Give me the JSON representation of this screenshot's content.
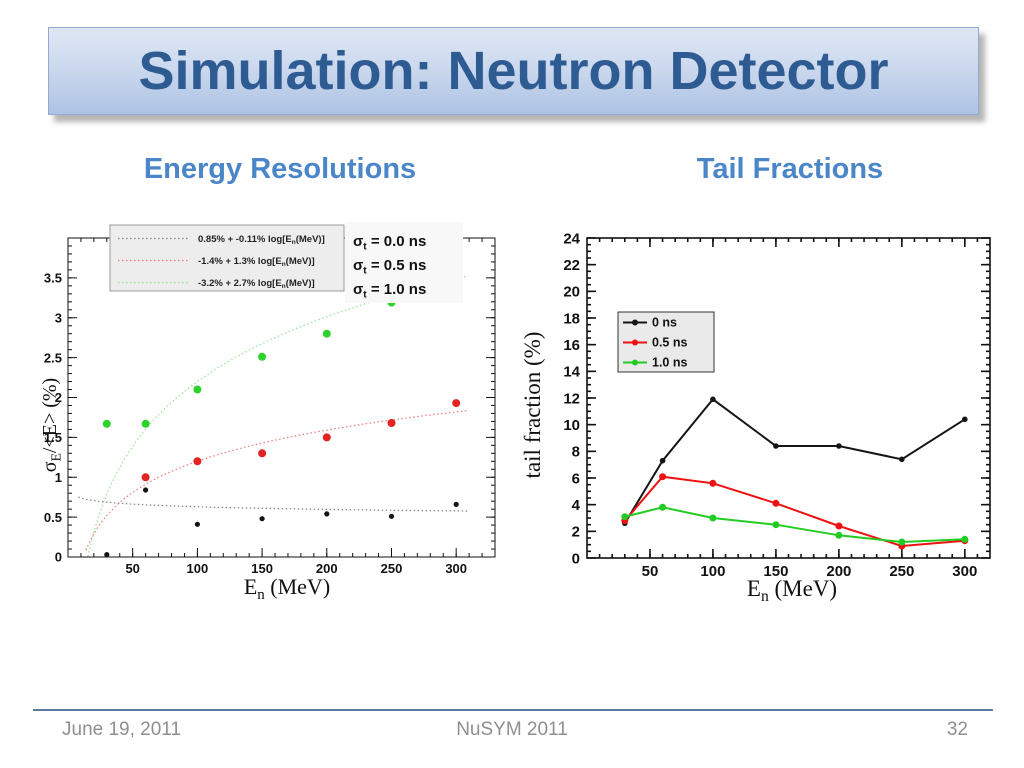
{
  "slide": {
    "title": "Simulation: Neutron Detector",
    "headings": {
      "left": "Energy Resolutions",
      "right": "Tail Fractions"
    },
    "footer": {
      "date": "June 19, 2011",
      "conference": "NuSYM 2011",
      "page_number": "32"
    }
  },
  "colors": {
    "title_text": "#2d5b92",
    "title_bar_top": "#dfe7f4",
    "title_bar_bottom": "#aec3e4",
    "heading": "#4a86c8",
    "footer_line": "#5d7c9d",
    "footer_text": "#8f8f8f"
  },
  "chart_data": [
    {
      "type": "scatter",
      "title": "Energy Resolutions",
      "xlabel": "E_n (MeV)",
      "ylabel": "sigma_E/<E> (%)",
      "xlabel_rich": [
        [
          "E",
          0
        ],
        [
          "n",
          1
        ],
        [
          " (MeV)",
          0
        ]
      ],
      "ylabel_rich": [
        [
          "σ",
          0
        ],
        [
          "E",
          1
        ],
        [
          "/<E> (%)",
          0
        ]
      ],
      "xlim": [
        0,
        330
      ],
      "ylim": [
        0,
        4.0
      ],
      "x_major_ticks": [
        50,
        100,
        150,
        200,
        250,
        300
      ],
      "y_major_ticks": [
        0,
        0.5,
        1,
        1.5,
        2,
        2.5,
        3,
        3.5
      ],
      "x_minor_step": 10,
      "y_minor_step": 0.1,
      "grid": false,
      "legend_position": "top-left",
      "series": [
        {
          "name": "0.0 ns",
          "sigma_label": [
            [
              "σ",
              0
            ],
            [
              "t",
              1
            ],
            [
              " = 0.0 ns",
              0
            ]
          ],
          "fit_label": [
            [
              "0.85% + -0.11% log[E",
              0
            ],
            [
              "n",
              1
            ],
            [
              "(MeV)]",
              0
            ]
          ],
          "fit": {
            "intercept_pct": 0.85,
            "slope_pct": -0.11,
            "draw_range": [
              8,
              310
            ]
          },
          "color": "#151515",
          "curve_color": "#808080",
          "marker_r": 2.6,
          "values": [
            [
              30,
              0.03
            ],
            [
              60,
              0.84
            ],
            [
              100,
              0.41
            ],
            [
              150,
              0.48
            ],
            [
              200,
              0.54
            ],
            [
              250,
              0.51
            ],
            [
              300,
              0.66
            ]
          ]
        },
        {
          "name": "0.5 ns",
          "sigma_label": [
            [
              "σ",
              0
            ],
            [
              "t",
              1
            ],
            [
              " = 0.5 ns",
              0
            ]
          ],
          "fit_label": [
            [
              "-1.4% + 1.3% log[E",
              0
            ],
            [
              "n",
              1
            ],
            [
              "(MeV)]",
              0
            ]
          ],
          "fit": {
            "intercept_pct": -1.4,
            "slope_pct": 1.3,
            "draw_range": [
              11.9,
              310
            ]
          },
          "color": "#e32222",
          "curve_color": "#ef7777",
          "marker_r": 4,
          "values": [
            [
              60,
              1.0
            ],
            [
              100,
              1.2
            ],
            [
              150,
              1.3
            ],
            [
              200,
              1.5
            ],
            [
              250,
              1.68
            ],
            [
              300,
              1.93
            ]
          ]
        },
        {
          "name": "1.0 ns",
          "sigma_label": [
            [
              "σ",
              0
            ],
            [
              "t",
              1
            ],
            [
              " = 1.0 ns",
              0
            ]
          ],
          "fit_label": [
            [
              "-3.2% + 2.7% log[E",
              0
            ],
            [
              "n",
              1
            ],
            [
              "(MeV)]",
              0
            ]
          ],
          "fit": {
            "intercept_pct": -3.2,
            "slope_pct": 2.7,
            "draw_range": [
              15.4,
              310
            ]
          },
          "color": "#2cd32c",
          "curve_color": "#8fe48f",
          "marker_r": 4,
          "values": [
            [
              30,
              1.67
            ],
            [
              60,
              1.67
            ],
            [
              100,
              2.1
            ],
            [
              150,
              2.51
            ],
            [
              200,
              2.8
            ],
            [
              250,
              3.19
            ],
            [
              300,
              3.58
            ]
          ]
        }
      ]
    },
    {
      "type": "line",
      "title": "Tail Fractions",
      "xlabel": "E_n (MeV)",
      "ylabel": "tail fraction (%)",
      "xlabel_rich": [
        [
          "E",
          0
        ],
        [
          "n",
          1
        ],
        [
          " (MeV)",
          0
        ]
      ],
      "ylabel_rich": [
        [
          "tail fraction (%)",
          0
        ]
      ],
      "xlim": [
        0,
        320
      ],
      "ylim": [
        0,
        24
      ],
      "x_major_ticks": [
        50,
        100,
        150,
        200,
        250,
        300
      ],
      "y_major_ticks": [
        0,
        2,
        4,
        6,
        8,
        10,
        12,
        14,
        16,
        18,
        20,
        22,
        24
      ],
      "x_minor_step": 10,
      "y_minor_step": 0.5,
      "grid": false,
      "legend_position": "upper-left",
      "series": [
        {
          "name": "0 ns",
          "color": "#151515",
          "marker_r": 2.8,
          "values": [
            [
              30,
              2.6
            ],
            [
              60,
              7.3
            ],
            [
              100,
              11.9
            ],
            [
              150,
              8.4
            ],
            [
              200,
              8.4
            ],
            [
              250,
              7.4
            ],
            [
              300,
              10.4
            ]
          ]
        },
        {
          "name": "0.5 ns",
          "color": "#ee1111",
          "marker_r": 3.5,
          "values": [
            [
              30,
              2.8
            ],
            [
              60,
              6.1
            ],
            [
              100,
              5.6
            ],
            [
              150,
              4.1
            ],
            [
              200,
              2.4
            ],
            [
              250,
              0.9
            ],
            [
              300,
              1.3
            ]
          ]
        },
        {
          "name": "1.0 ns",
          "color": "#22cc22",
          "marker_r": 3.5,
          "values": [
            [
              30,
              3.1
            ],
            [
              60,
              3.8
            ],
            [
              100,
              3.0
            ],
            [
              150,
              2.5
            ],
            [
              200,
              1.7
            ],
            [
              250,
              1.2
            ],
            [
              300,
              1.4
            ]
          ]
        }
      ]
    }
  ]
}
